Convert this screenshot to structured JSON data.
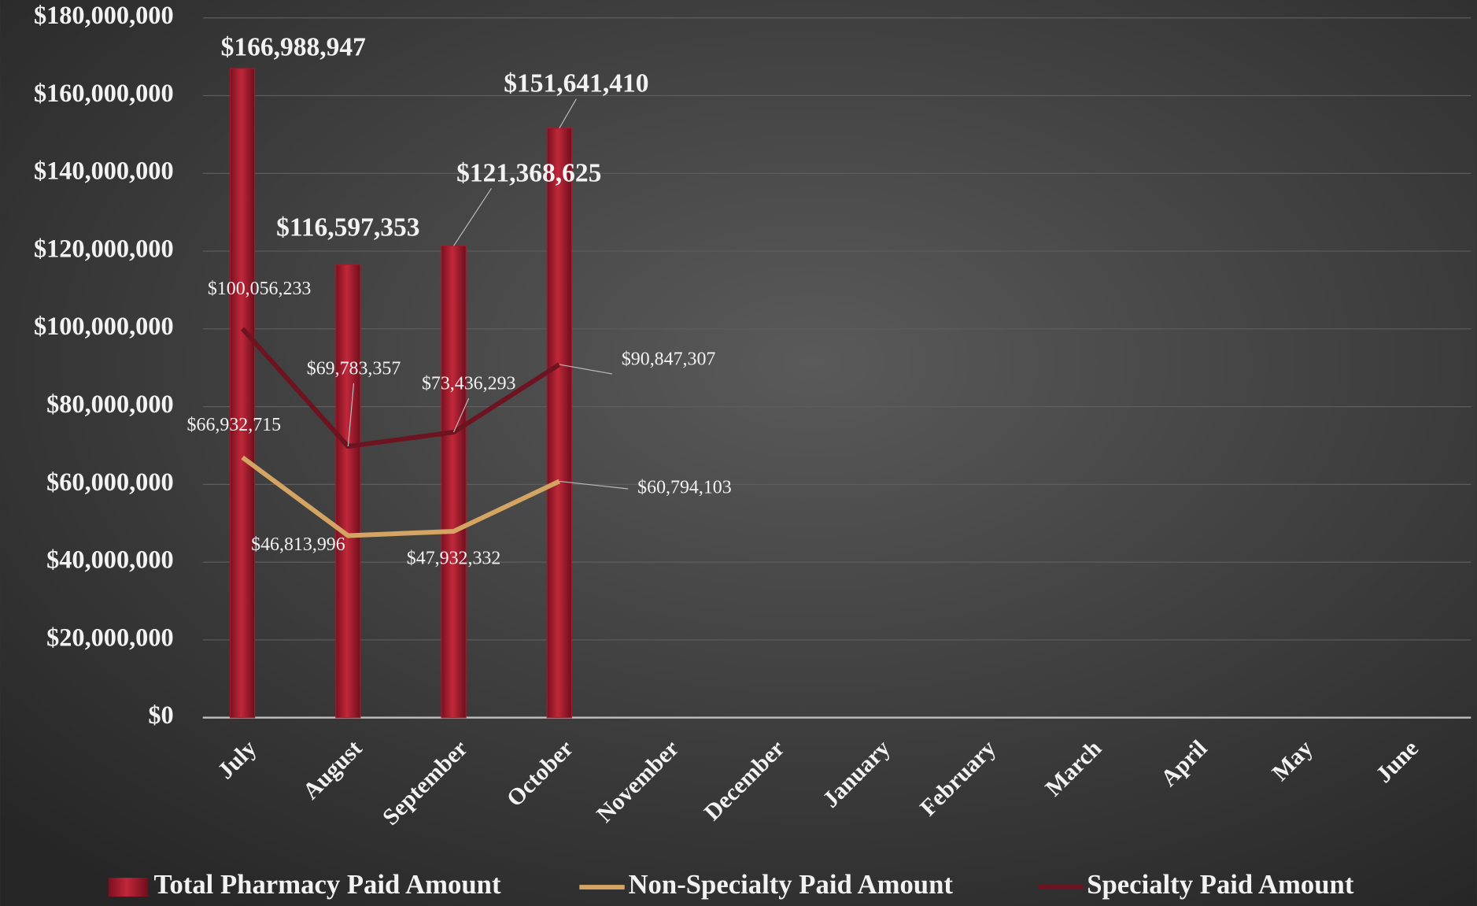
{
  "chart_data": {
    "type": "bar-line",
    "categories": [
      "July",
      "August",
      "September",
      "October",
      "November",
      "December",
      "January",
      "February",
      "March",
      "April",
      "May",
      "June"
    ],
    "series": [
      {
        "name": "Total Pharmacy Paid Amount",
        "type": "bar",
        "color": "#a01c2c",
        "values": [
          166988947,
          116597353,
          121368625,
          151641410,
          null,
          null,
          null,
          null,
          null,
          null,
          null,
          null
        ],
        "value_labels": [
          "$166,988,947",
          "$116,597,353",
          "$121,368,625",
          "$151,641,410",
          null,
          null,
          null,
          null,
          null,
          null,
          null,
          null
        ]
      },
      {
        "name": "Non-Specialty Paid Amount",
        "type": "line",
        "color": "#d4a463",
        "values": [
          66932715,
          46813996,
          47932332,
          60794103,
          null,
          null,
          null,
          null,
          null,
          null,
          null,
          null
        ],
        "value_labels": [
          "$66,932,715",
          "$46,813,996",
          "$47,932,332",
          "$60,794,103",
          null,
          null,
          null,
          null,
          null,
          null,
          null,
          null
        ]
      },
      {
        "name": "Specialty Paid Amount",
        "type": "line",
        "color": "#6e1420",
        "values": [
          100056233,
          69783357,
          73436293,
          90847307,
          null,
          null,
          null,
          null,
          null,
          null,
          null,
          null
        ],
        "value_labels": [
          "$100,056,233",
          "$69,783,357",
          "$73,436,293",
          "$90,847,307",
          null,
          null,
          null,
          null,
          null,
          null,
          null,
          null
        ]
      }
    ],
    "ylim": [
      0,
      180000000
    ],
    "yticks": [
      {
        "value": 0,
        "label": "$0"
      },
      {
        "value": 20000000,
        "label": "$20,000,000"
      },
      {
        "value": 40000000,
        "label": "$40,000,000"
      },
      {
        "value": 60000000,
        "label": "$60,000,000"
      },
      {
        "value": 80000000,
        "label": "$80,000,000"
      },
      {
        "value": 100000000,
        "label": "$100,000,000"
      },
      {
        "value": 120000000,
        "label": "$120,000,000"
      },
      {
        "value": 140000000,
        "label": "$140,000,000"
      },
      {
        "value": 160000000,
        "label": "$160,000,000"
      },
      {
        "value": 180000000,
        "label": "$180,000,000"
      }
    ],
    "grid": true,
    "legend": "bottom"
  }
}
